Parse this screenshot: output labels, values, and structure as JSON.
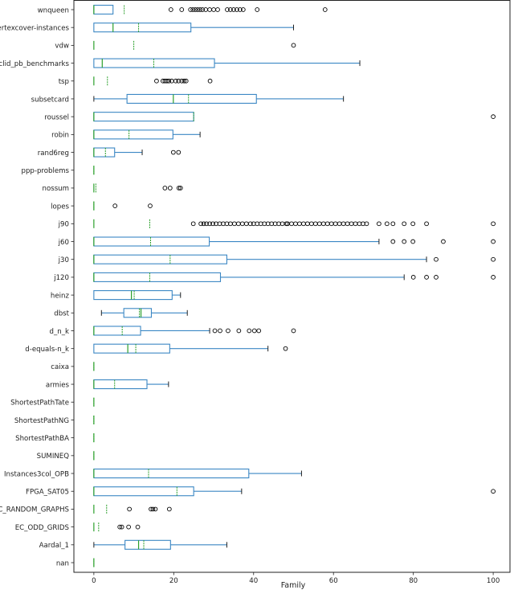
{
  "chart_data": {
    "type": "boxplot-horizontal",
    "xlabel": "Family",
    "ylabel": "",
    "xlim": [
      -5,
      104.2
    ],
    "xticks": [
      0,
      20,
      40,
      60,
      80,
      100
    ],
    "grid": false,
    "colors": {
      "box": "#3b87c4",
      "median": "#2ca02c",
      "mean": "#2ca02c",
      "flier": "#000000",
      "cap": "#222222"
    },
    "categories": [
      {
        "label": "wnqueen",
        "whislo": 0,
        "q1": 0,
        "med": 0,
        "mean": 7.6,
        "q3": 4.8,
        "whishi": 4.8,
        "fliers": [
          19.3,
          22,
          24.2,
          24.8,
          25.4,
          26,
          26.6,
          27.2,
          28,
          29,
          30,
          31,
          33.4,
          34.2,
          35,
          35.8,
          36.6,
          37.4,
          40.9,
          57.9
        ]
      },
      {
        "label": "vertexcover-instances",
        "whislo": 0,
        "q1": 0,
        "med": 4.8,
        "mean": 11.2,
        "q3": 24.3,
        "whishi": 50,
        "fliers": []
      },
      {
        "label": "vdw",
        "whislo": 0,
        "q1": 0,
        "med": 0,
        "mean": 10,
        "q3": 0,
        "whishi": 0,
        "fliers": [
          50
        ]
      },
      {
        "label": "uclid_pb_benchmarks",
        "whislo": 0,
        "q1": 0,
        "med": 2.1,
        "mean": 15,
        "q3": 30.2,
        "whishi": 66.6,
        "fliers": []
      },
      {
        "label": "tsp",
        "whislo": 0,
        "q1": 0,
        "med": 0,
        "mean": 3.4,
        "q3": 0,
        "whishi": 0,
        "fliers": [
          15.7,
          17.3,
          17.8,
          18.3,
          18.8,
          19.5,
          20.5,
          21.2,
          22,
          22.6,
          23.1,
          29.1
        ]
      },
      {
        "label": "subsetcard",
        "whislo": 0,
        "q1": 8.3,
        "med": 19.9,
        "mean": 23.7,
        "q3": 40.7,
        "whishi": 62.5,
        "fliers": []
      },
      {
        "label": "roussel",
        "whislo": 0,
        "q1": 0,
        "med": 0,
        "mean": 25,
        "q3": 25,
        "whishi": 25,
        "fliers": [
          100
        ]
      },
      {
        "label": "robin",
        "whislo": 0,
        "q1": 0,
        "med": 0,
        "mean": 8.8,
        "q3": 19.8,
        "whishi": 26.6,
        "fliers": []
      },
      {
        "label": "rand6reg",
        "whislo": 0,
        "q1": 0,
        "med": 0,
        "mean": 2.9,
        "q3": 5.2,
        "whishi": 12.1,
        "fliers": [
          19.9,
          21.2
        ]
      },
      {
        "label": "ppp-problems",
        "whislo": 0,
        "q1": 0,
        "med": 0,
        "mean": 0,
        "q3": 0,
        "whishi": 0,
        "fliers": []
      },
      {
        "label": "nossum",
        "whislo": 0,
        "q1": 0,
        "med": 0,
        "mean": 0.5,
        "q3": 0,
        "whishi": 0,
        "fliers": [
          17.8,
          19.1,
          21.3,
          21.7
        ]
      },
      {
        "label": "lopes",
        "whislo": 0,
        "q1": 0,
        "med": 0,
        "mean": 0,
        "q3": 0,
        "whishi": 0,
        "fliers": [
          5.3,
          14.1
        ]
      },
      {
        "label": "j90",
        "whislo": 0,
        "q1": 0,
        "med": 0,
        "mean": 14,
        "q3": 0,
        "whishi": 0,
        "fliers": [
          24.9,
          26.8,
          27.5,
          28.2,
          29,
          29.8,
          30.6,
          31.5,
          32.4,
          33.3,
          34.2,
          35.2,
          36.2,
          37.2,
          38.2,
          39.2,
          40,
          40.9,
          41.8,
          42.7,
          43.6,
          44.5,
          45.4,
          46.3,
          47.2,
          48.2,
          48.5,
          49.5,
          50.5,
          51.5,
          52.5,
          53.5,
          54.5,
          55.5,
          56.5,
          57.5,
          58.5,
          59.5,
          60.5,
          61.5,
          62.5,
          63.5,
          64.5,
          65.5,
          66.5,
          67.4,
          68.3,
          71.4,
          73.4,
          74.9,
          77.7,
          79.9,
          83.3,
          100
        ]
      },
      {
        "label": "j60",
        "whislo": 0,
        "q1": 0,
        "med": 0,
        "mean": 14.2,
        "q3": 28.9,
        "whishi": 71.4,
        "fliers": [
          74.9,
          77.7,
          79.9,
          87.5,
          100
        ]
      },
      {
        "label": "j30",
        "whislo": 0,
        "q1": 0,
        "med": 0,
        "mean": 19.1,
        "q3": 33.3,
        "whishi": 83.3,
        "fliers": [
          85.7,
          100
        ]
      },
      {
        "label": "j120",
        "whislo": 0,
        "q1": 0,
        "med": 0,
        "mean": 14,
        "q3": 31.7,
        "whishi": 77.7,
        "fliers": [
          80,
          83.3,
          85.7,
          100
        ]
      },
      {
        "label": "heinz",
        "whislo": 0,
        "q1": 0,
        "med": 9.4,
        "mean": 10.1,
        "q3": 19.6,
        "whishi": 21.7,
        "fliers": []
      },
      {
        "label": "dbst",
        "whislo": 1.9,
        "q1": 7.5,
        "med": 11.8,
        "mean": 11.4,
        "q3": 14.4,
        "whishi": 23.4,
        "fliers": []
      },
      {
        "label": "d_n_k",
        "whislo": 0,
        "q1": 0,
        "med": 0,
        "mean": 7.1,
        "q3": 11.7,
        "whishi": 29,
        "fliers": [
          30.3,
          31.6,
          33.6,
          36.3,
          38.9,
          40.2,
          41.3,
          50
        ]
      },
      {
        "label": "d-equals-n_k",
        "whislo": 0,
        "q1": 0,
        "med": 8.5,
        "mean": 10.5,
        "q3": 19,
        "whishi": 43.6,
        "fliers": [
          48
        ]
      },
      {
        "label": "caixa",
        "whislo": 0,
        "q1": 0,
        "med": 0,
        "mean": 0,
        "q3": 0,
        "whishi": 0,
        "fliers": []
      },
      {
        "label": "armies",
        "whislo": 0,
        "q1": 0,
        "med": 0,
        "mean": 5.2,
        "q3": 13.3,
        "whishi": 18.7,
        "fliers": []
      },
      {
        "label": "ShortestPathTate",
        "whislo": 0,
        "q1": 0,
        "med": 0,
        "mean": 0,
        "q3": 0,
        "whishi": 0,
        "fliers": []
      },
      {
        "label": "ShortestPathNG",
        "whislo": 0,
        "q1": 0,
        "med": 0,
        "mean": 0,
        "q3": 0,
        "whishi": 0,
        "fliers": []
      },
      {
        "label": "ShortestPathBA",
        "whislo": 0,
        "q1": 0,
        "med": 0,
        "mean": 0,
        "q3": 0,
        "whishi": 0,
        "fliers": []
      },
      {
        "label": "SUMINEQ",
        "whislo": 0,
        "q1": 0,
        "med": 0,
        "mean": 0,
        "q3": 0,
        "whishi": 0,
        "fliers": []
      },
      {
        "label": "Instances3col_OPB",
        "whislo": 0,
        "q1": 0,
        "med": 0,
        "mean": 13.7,
        "q3": 38.8,
        "whishi": 52,
        "fliers": []
      },
      {
        "label": "FPGA_SAT05",
        "whislo": 0,
        "q1": 0,
        "med": 0,
        "mean": 20.8,
        "q3": 25,
        "whishi": 37,
        "fliers": [
          100
        ]
      },
      {
        "label": "EC_RANDOM_GRAPHS",
        "whislo": 0,
        "q1": 0,
        "med": 0,
        "mean": 3.2,
        "q3": 0,
        "whishi": 0,
        "fliers": [
          8.9,
          14.3,
          14.8,
          15.4,
          18.9
        ]
      },
      {
        "label": "EC_ODD_GRIDS",
        "whislo": 0,
        "q1": 0,
        "med": 0,
        "mean": 1.2,
        "q3": 0,
        "whishi": 0,
        "fliers": [
          6.5,
          7,
          8.7,
          11
        ]
      },
      {
        "label": "Aardal_1",
        "whislo": 0,
        "q1": 7.8,
        "med": 11.2,
        "mean": 12.5,
        "q3": 19.2,
        "whishi": 33.3,
        "fliers": []
      },
      {
        "label": "nan",
        "whislo": 0,
        "q1": 0,
        "med": 0,
        "mean": 0,
        "q3": 0,
        "whishi": 0,
        "fliers": []
      }
    ]
  }
}
